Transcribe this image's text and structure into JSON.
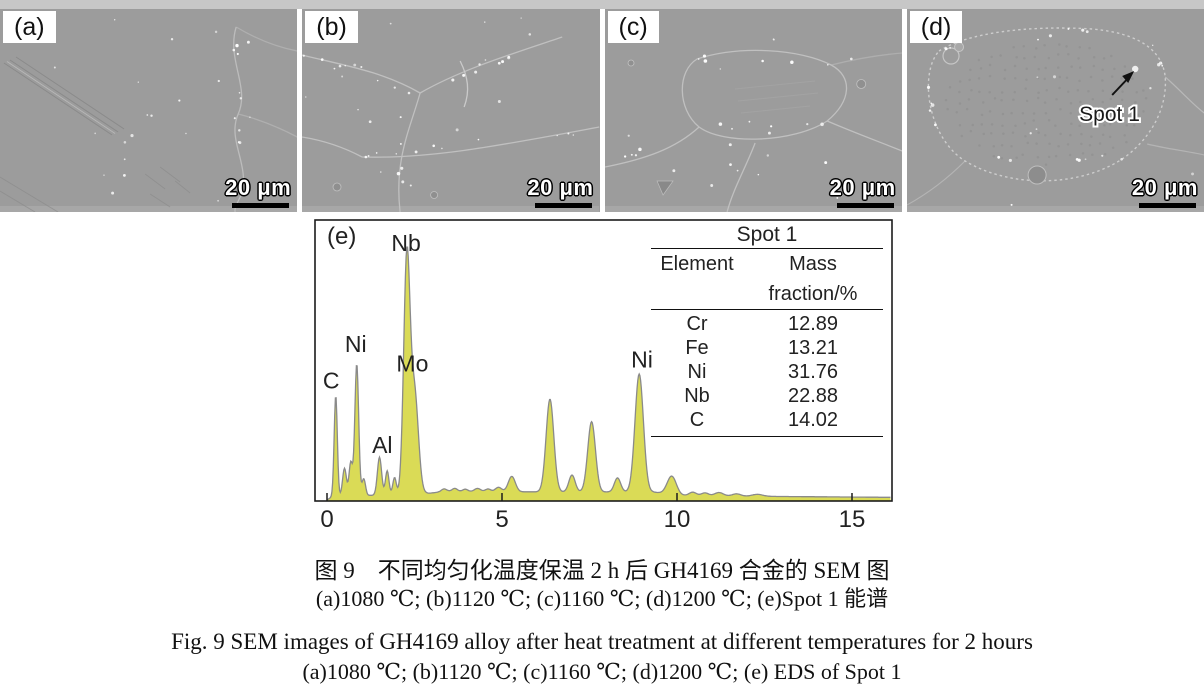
{
  "figure": {
    "panels": [
      {
        "id": "a",
        "label": "(a)",
        "scale_label": "20 μm"
      },
      {
        "id": "b",
        "label": "(b)",
        "scale_label": "20 μm"
      },
      {
        "id": "c",
        "label": "(c)",
        "scale_label": "20 μm"
      },
      {
        "id": "d",
        "label": "(d)",
        "scale_label": "20 μm",
        "annotation": "Spot 1"
      }
    ]
  },
  "chart_data": {
    "type": "area",
    "panel_label": "(e)",
    "title": "",
    "xlabel": "",
    "ylabel": "",
    "xlim": [
      0,
      16.1
    ],
    "x_ticks": [
      0,
      5,
      10,
      15
    ],
    "grid": false,
    "fill_color": "#dadb56",
    "outline_color": "#8a8a8a",
    "axis_color": "#1c1c1c",
    "peaks": [
      {
        "x": 0.25,
        "h": 0.36,
        "w": 0.045,
        "element": "C"
      },
      {
        "x": 0.5,
        "h": 0.1,
        "w": 0.055
      },
      {
        "x": 0.68,
        "h": 0.12,
        "w": 0.05
      },
      {
        "x": 0.85,
        "h": 0.47,
        "w": 0.055,
        "element": "Ni"
      },
      {
        "x": 1.05,
        "h": 0.06,
        "w": 0.05
      },
      {
        "x": 1.5,
        "h": 0.135,
        "w": 0.06,
        "element": "Al"
      },
      {
        "x": 1.72,
        "h": 0.085,
        "w": 0.05
      },
      {
        "x": 1.93,
        "h": 0.06,
        "w": 0.05
      },
      {
        "x": 2.28,
        "h": 0.83,
        "w": 0.09,
        "element": "Nb"
      },
      {
        "x": 2.5,
        "h": 0.36,
        "w": 0.11,
        "element": "Mo"
      },
      {
        "x": 3.35,
        "h": 0.01,
        "w": 0.08
      },
      {
        "x": 3.65,
        "h": 0.012,
        "w": 0.08
      },
      {
        "x": 3.95,
        "h": 0.009,
        "w": 0.08
      },
      {
        "x": 4.3,
        "h": 0.012,
        "w": 0.09
      },
      {
        "x": 4.6,
        "h": 0.01,
        "w": 0.08
      },
      {
        "x": 4.9,
        "h": 0.016,
        "w": 0.09
      },
      {
        "x": 5.28,
        "h": 0.055,
        "w": 0.1
      },
      {
        "x": 6.37,
        "h": 0.33,
        "w": 0.11
      },
      {
        "x": 7.0,
        "h": 0.06,
        "w": 0.09
      },
      {
        "x": 7.56,
        "h": 0.25,
        "w": 0.11
      },
      {
        "x": 8.3,
        "h": 0.05,
        "w": 0.09
      },
      {
        "x": 8.92,
        "h": 0.42,
        "w": 0.12,
        "element": "Ni"
      },
      {
        "x": 9.85,
        "h": 0.065,
        "w": 0.13
      },
      {
        "x": 10.45,
        "h": 0.012,
        "w": 0.1
      },
      {
        "x": 10.8,
        "h": 0.01,
        "w": 0.1
      },
      {
        "x": 11.2,
        "h": 0.012,
        "w": 0.12
      },
      {
        "x": 11.7,
        "h": 0.008,
        "w": 0.12
      },
      {
        "x": 12.3,
        "h": 0.007,
        "w": 0.15
      }
    ],
    "baseline": [
      [
        0,
        0.004
      ],
      [
        0.15,
        0.015
      ],
      [
        2.95,
        0.028
      ],
      [
        3.3,
        0.033
      ],
      [
        9.3,
        0.032
      ],
      [
        10.1,
        0.02
      ],
      [
        12,
        0.017
      ],
      [
        16.1,
        0.013
      ]
    ],
    "labels": [
      {
        "text": "C",
        "x": 0.12,
        "h": 0.4
      },
      {
        "text": "Ni",
        "x": 0.82,
        "h": 0.53
      },
      {
        "text": "Al",
        "x": 1.58,
        "h": 0.17
      },
      {
        "text": "Nb",
        "x": 2.26,
        "h": 0.89
      },
      {
        "text": "Mo",
        "x": 2.44,
        "h": 0.46
      },
      {
        "text": "Ni",
        "x": 9.0,
        "h": 0.475
      }
    ],
    "inset_table": {
      "title": "Spot 1",
      "columns": [
        "Element",
        "Mass fraction/%"
      ],
      "rows": [
        [
          "Cr",
          "12.89"
        ],
        [
          "Fe",
          "13.21"
        ],
        [
          "Ni",
          "31.76"
        ],
        [
          "Nb",
          "22.88"
        ],
        [
          "C",
          "14.02"
        ]
      ]
    }
  },
  "captions": {
    "zh_title": "图 9　不同均匀化温度保温 2 h 后 GH4169 合金的 SEM 图",
    "zh_sub": "(a)1080 ℃; (b)1120 ℃; (c)1160 ℃; (d)1200 ℃; (e)Spot 1 能谱",
    "en_title": "Fig. 9  SEM images of GH4169 alloy after heat treatment at different temperatures for 2 hours",
    "en_sub": "(a)1080 ℃; (b)1120 ℃; (c)1160 ℃; (d)1200 ℃; (e) EDS of Spot 1"
  }
}
